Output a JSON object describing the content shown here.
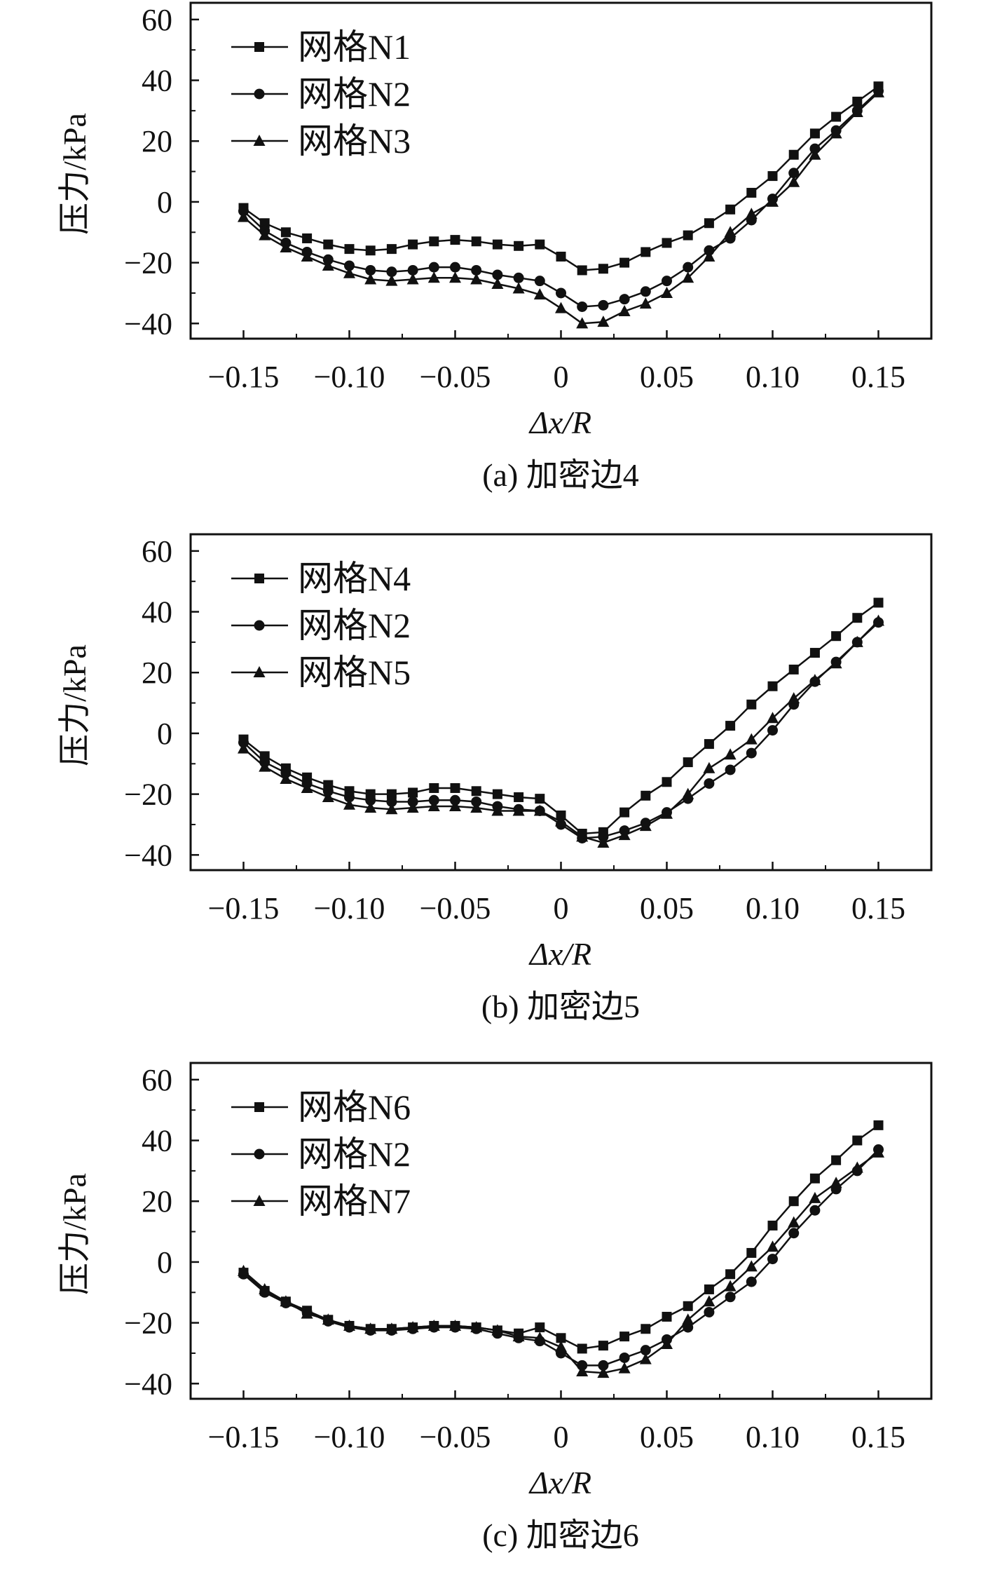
{
  "chart_data": [
    {
      "type": "line",
      "title": "",
      "caption": "(a) 加密边4",
      "xlabel": "Δx/R",
      "ylabel": "压力/kPa",
      "xlim": [
        -0.175,
        0.175
      ],
      "ylim": [
        -45,
        65.5
      ],
      "xticks": [
        "−0.15",
        "−0.10",
        "−0.05",
        "0",
        "0.05",
        "0.10",
        "0.15"
      ],
      "yticks": [
        "60",
        "40",
        "20",
        "0",
        "−20",
        "−40"
      ],
      "legend_position": "top-left",
      "x": [
        -0.15,
        -0.14,
        -0.13,
        -0.12,
        -0.11,
        -0.1,
        -0.09,
        -0.08,
        -0.07,
        -0.06,
        -0.05,
        -0.04,
        -0.03,
        -0.02,
        -0.01,
        0,
        0.01,
        0.02,
        0.03,
        0.04,
        0.05,
        0.06,
        0.07,
        0.08,
        0.09,
        0.1,
        0.11,
        0.12,
        0.13,
        0.14,
        0.15
      ],
      "series": [
        {
          "name": "网格N1",
          "marker": "square",
          "values": [
            -2,
            -7,
            -10,
            -12,
            -14,
            -15.5,
            -16,
            -15.5,
            -14,
            -13,
            -12.5,
            -13,
            -14,
            -14.5,
            -14,
            -18,
            -22.5,
            -22,
            -20,
            -16.5,
            -13.5,
            -11,
            -7,
            -2.5,
            3,
            8.5,
            15.5,
            22.5,
            28,
            33,
            38
          ]
        },
        {
          "name": "网格N2",
          "marker": "circle",
          "values": [
            -3,
            -9.5,
            -13.5,
            -16.5,
            -19,
            -21,
            -22.5,
            -23,
            -22.5,
            -21.5,
            -21.5,
            -22.5,
            -24,
            -25,
            -26,
            -30,
            -34.5,
            -34,
            -32,
            -29.5,
            -26,
            -21.5,
            -16,
            -12,
            -6,
            1,
            9.5,
            17.5,
            23.5,
            30,
            36.5
          ]
        },
        {
          "name": "网格N3",
          "marker": "triangle",
          "values": [
            -5,
            -11,
            -15,
            -18,
            -21,
            -23.5,
            -25.5,
            -26,
            -25.5,
            -25,
            -25,
            -25.5,
            -27,
            -28.5,
            -30.5,
            -35,
            -40,
            -39.5,
            -36,
            -33.5,
            -30,
            -25,
            -18,
            -10,
            -4,
            0,
            6.5,
            15.5,
            22.5,
            29.5,
            36
          ]
        }
      ]
    },
    {
      "type": "line",
      "title": "",
      "caption": "(b) 加密边5",
      "xlabel": "Δx/R",
      "ylabel": "压力/kPa",
      "xlim": [
        -0.175,
        0.175
      ],
      "ylim": [
        -45,
        65.5
      ],
      "xticks": [
        "−0.15",
        "−0.10",
        "−0.05",
        "0",
        "0.05",
        "0.10",
        "0.15"
      ],
      "yticks": [
        "60",
        "40",
        "20",
        "0",
        "−20",
        "−40"
      ],
      "legend_position": "top-left",
      "x": [
        -0.15,
        -0.14,
        -0.13,
        -0.12,
        -0.11,
        -0.1,
        -0.09,
        -0.08,
        -0.07,
        -0.06,
        -0.05,
        -0.04,
        -0.03,
        -0.02,
        -0.01,
        0,
        0.01,
        0.02,
        0.03,
        0.04,
        0.05,
        0.06,
        0.07,
        0.08,
        0.09,
        0.1,
        0.11,
        0.12,
        0.13,
        0.14,
        0.15
      ],
      "series": [
        {
          "name": "网格N4",
          "marker": "square",
          "values": [
            -2,
            -7.5,
            -11.5,
            -14.5,
            -17,
            -19,
            -20,
            -20,
            -19.5,
            -18,
            -18,
            -19,
            -20,
            -21,
            -21.5,
            -27,
            -33,
            -32.5,
            -26,
            -20.5,
            -16,
            -9.5,
            -3.5,
            2.5,
            9.5,
            15.5,
            21,
            26.5,
            32,
            38,
            43
          ]
        },
        {
          "name": "网格N2",
          "marker": "circle",
          "values": [
            -3,
            -9.5,
            -13,
            -16.5,
            -19,
            -21,
            -22,
            -22.5,
            -22.5,
            -22,
            -22,
            -22.5,
            -24,
            -25,
            -25.5,
            -30,
            -34.5,
            -34,
            -32,
            -29.5,
            -26,
            -21.5,
            -16.5,
            -12,
            -6.5,
            1,
            9.5,
            17,
            23.5,
            30,
            36.5
          ]
        },
        {
          "name": "网格N5",
          "marker": "triangle",
          "values": [
            -5,
            -11,
            -15,
            -18,
            -21,
            -23.5,
            -24.5,
            -25,
            -24.5,
            -24,
            -24,
            -24.5,
            -25.5,
            -25.5,
            -25.5,
            -29,
            -34,
            -36,
            -33.5,
            -30.5,
            -26.5,
            -20,
            -11.5,
            -7,
            -2,
            5,
            11.5,
            17.5,
            23,
            30,
            37
          ]
        }
      ]
    },
    {
      "type": "line",
      "title": "",
      "caption": "(c) 加密边6",
      "xlabel": "Δx/R",
      "ylabel": "压力/kPa",
      "xlim": [
        -0.175,
        0.175
      ],
      "ylim": [
        -45,
        65.5
      ],
      "xticks": [
        "−0.15",
        "−0.10",
        "−0.05",
        "0",
        "0.05",
        "0.10",
        "0.15"
      ],
      "yticks": [
        "60",
        "40",
        "20",
        "0",
        "−20",
        "−40"
      ],
      "legend_position": "top-left",
      "x": [
        -0.15,
        -0.14,
        -0.13,
        -0.12,
        -0.11,
        -0.1,
        -0.09,
        -0.08,
        -0.07,
        -0.06,
        -0.05,
        -0.04,
        -0.03,
        -0.02,
        -0.01,
        0,
        0.01,
        0.02,
        0.03,
        0.04,
        0.05,
        0.06,
        0.07,
        0.08,
        0.09,
        0.1,
        0.11,
        0.12,
        0.13,
        0.14,
        0.15
      ],
      "series": [
        {
          "name": "网格N6",
          "marker": "square",
          "values": [
            -3.5,
            -9.5,
            -13,
            -16,
            -19,
            -21,
            -22,
            -22,
            -21.5,
            -21,
            -21,
            -21.5,
            -22.5,
            -23.5,
            -21.5,
            -25,
            -28.5,
            -27.5,
            -24.5,
            -22,
            -18,
            -14.5,
            -9,
            -4,
            3,
            12,
            20,
            27.5,
            33.5,
            40,
            45
          ]
        },
        {
          "name": "网格N2",
          "marker": "circle",
          "values": [
            -4,
            -10,
            -13.5,
            -16.5,
            -19.5,
            -21.5,
            -22.5,
            -22.5,
            -22,
            -21.5,
            -21.5,
            -22,
            -23.5,
            -25,
            -26,
            -30,
            -34,
            -34,
            -31.5,
            -29,
            -25.5,
            -21.5,
            -16.5,
            -11.5,
            -6.5,
            1,
            9.5,
            17,
            24,
            30,
            37
          ]
        },
        {
          "name": "网格N7",
          "marker": "triangle",
          "values": [
            -3,
            -9,
            -13,
            -17,
            -19,
            -21,
            -22,
            -22,
            -21.5,
            -21,
            -21,
            -21.5,
            -22.5,
            -24.5,
            -25,
            -28,
            -36,
            -36.5,
            -35,
            -32,
            -27,
            -19,
            -13,
            -8,
            -1.5,
            5,
            13,
            21,
            26,
            31,
            36
          ]
        }
      ]
    }
  ]
}
